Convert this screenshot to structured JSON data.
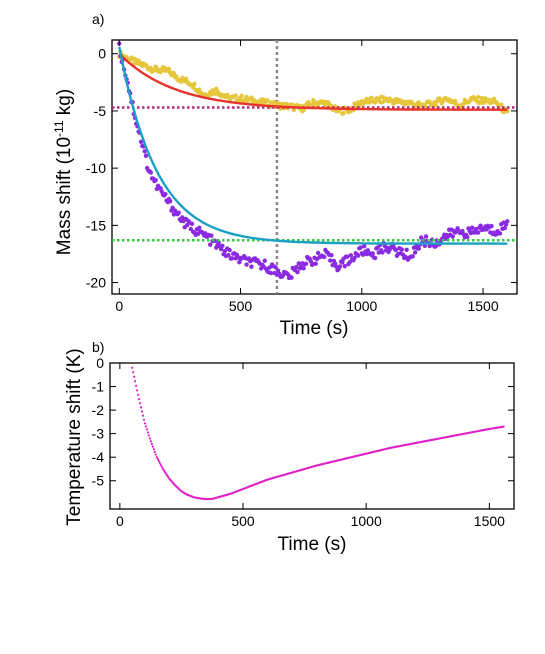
{
  "chart_data": [
    {
      "type": "scatter",
      "panel_label": "a)",
      "xlabel": "Time (s)",
      "ylabel_prefix": "Mass shift (10",
      "ylabel_exp": "-11",
      "ylabel_suffix": " kg)",
      "xlim": [
        -30,
        1640
      ],
      "ylim": [
        -21,
        1.2
      ],
      "xticks": [
        0,
        500,
        1000,
        1500
      ],
      "yticks": [
        0,
        -5,
        -10,
        -15,
        -20
      ],
      "grid": false,
      "legend": "none",
      "vline_x": 650,
      "series": [
        {
          "color": "#e6c63a",
          "x": [
            0,
            50,
            100,
            150,
            200,
            250,
            300,
            350,
            400,
            450,
            500,
            550,
            600,
            650,
            700,
            750,
            800,
            850,
            900,
            950,
            1000,
            1050,
            1100,
            1150,
            1200,
            1250,
            1300,
            1350,
            1400,
            1450,
            1500,
            1550,
            1600
          ],
          "y": [
            0,
            -0.6,
            -1.0,
            -1.4,
            -1.5,
            -2.2,
            -2.6,
            -3.6,
            -3.2,
            -3.9,
            -3.9,
            -4.1,
            -4.3,
            -4.5,
            -4.6,
            -4.8,
            -4.3,
            -4.3,
            -5.0,
            -4.9,
            -4.2,
            -4.1,
            -4.0,
            -4.2,
            -4.3,
            -4.6,
            -4.3,
            -3.9,
            -4.5,
            -4.0,
            -4.1,
            -4.2,
            -5.2
          ]
        },
        {
          "color": "#8a2be2",
          "x": [
            0,
            30,
            60,
            90,
            120,
            150,
            180,
            210,
            240,
            270,
            300,
            330,
            360,
            400,
            450,
            500,
            550,
            600,
            650,
            700,
            750,
            800,
            850,
            900,
            950,
            1000,
            1050,
            1100,
            1150,
            1200,
            1250,
            1300,
            1350,
            1400,
            1450,
            1500,
            1550,
            1600
          ],
          "y": [
            0.5,
            -2.0,
            -5.0,
            -7.5,
            -10.0,
            -11.4,
            -12.3,
            -13.2,
            -14.0,
            -14.8,
            -15.2,
            -15.6,
            -16.0,
            -16.7,
            -17.5,
            -18.0,
            -18.3,
            -18.5,
            -19.0,
            -19.5,
            -18.4,
            -18.0,
            -17.6,
            -18.5,
            -18.0,
            -17.2,
            -17.5,
            -16.8,
            -17.3,
            -17.7,
            -16.3,
            -16.6,
            -15.9,
            -15.5,
            -15.7,
            -15.2,
            -15.5,
            -14.9
          ]
        }
      ],
      "fits": [
        {
          "color": "#e8322c",
          "amplitude": -4.9,
          "tau": 230
        },
        {
          "color": "#1aa0c4",
          "amplitude": -16.6,
          "tau": 155
        }
      ],
      "hlines": [
        {
          "color": "#b0297a",
          "y": -4.7
        },
        {
          "color": "#2ecc40",
          "y": -16.3
        }
      ]
    },
    {
      "type": "scatter",
      "panel_label": "b)",
      "xlabel": "Time (s)",
      "ylabel": "Temperature shift (K)",
      "xlim": [
        -40,
        1600
      ],
      "ylim": [
        -6.2,
        0
      ],
      "xticks": [
        0,
        500,
        1000,
        1500
      ],
      "yticks": [
        0,
        -1,
        -2,
        -3,
        -4,
        -5
      ],
      "grid": false,
      "legend": "none",
      "series": [
        {
          "color": "#e020c8",
          "x": [
            50,
            75,
            100,
            125,
            150,
            175,
            200,
            225,
            250,
            275,
            300,
            325,
            350,
            375,
            400,
            450,
            500,
            550,
            600,
            700,
            800,
            900,
            1000,
            1100,
            1200,
            1300,
            1400,
            1500,
            1560
          ],
          "y": [
            -0.2,
            -1.4,
            -2.5,
            -3.3,
            -4.0,
            -4.5,
            -4.9,
            -5.2,
            -5.45,
            -5.6,
            -5.7,
            -5.75,
            -5.78,
            -5.77,
            -5.7,
            -5.55,
            -5.35,
            -5.15,
            -4.95,
            -4.65,
            -4.35,
            -4.1,
            -3.85,
            -3.6,
            -3.4,
            -3.2,
            -3.0,
            -2.8,
            -2.7
          ]
        }
      ]
    }
  ]
}
